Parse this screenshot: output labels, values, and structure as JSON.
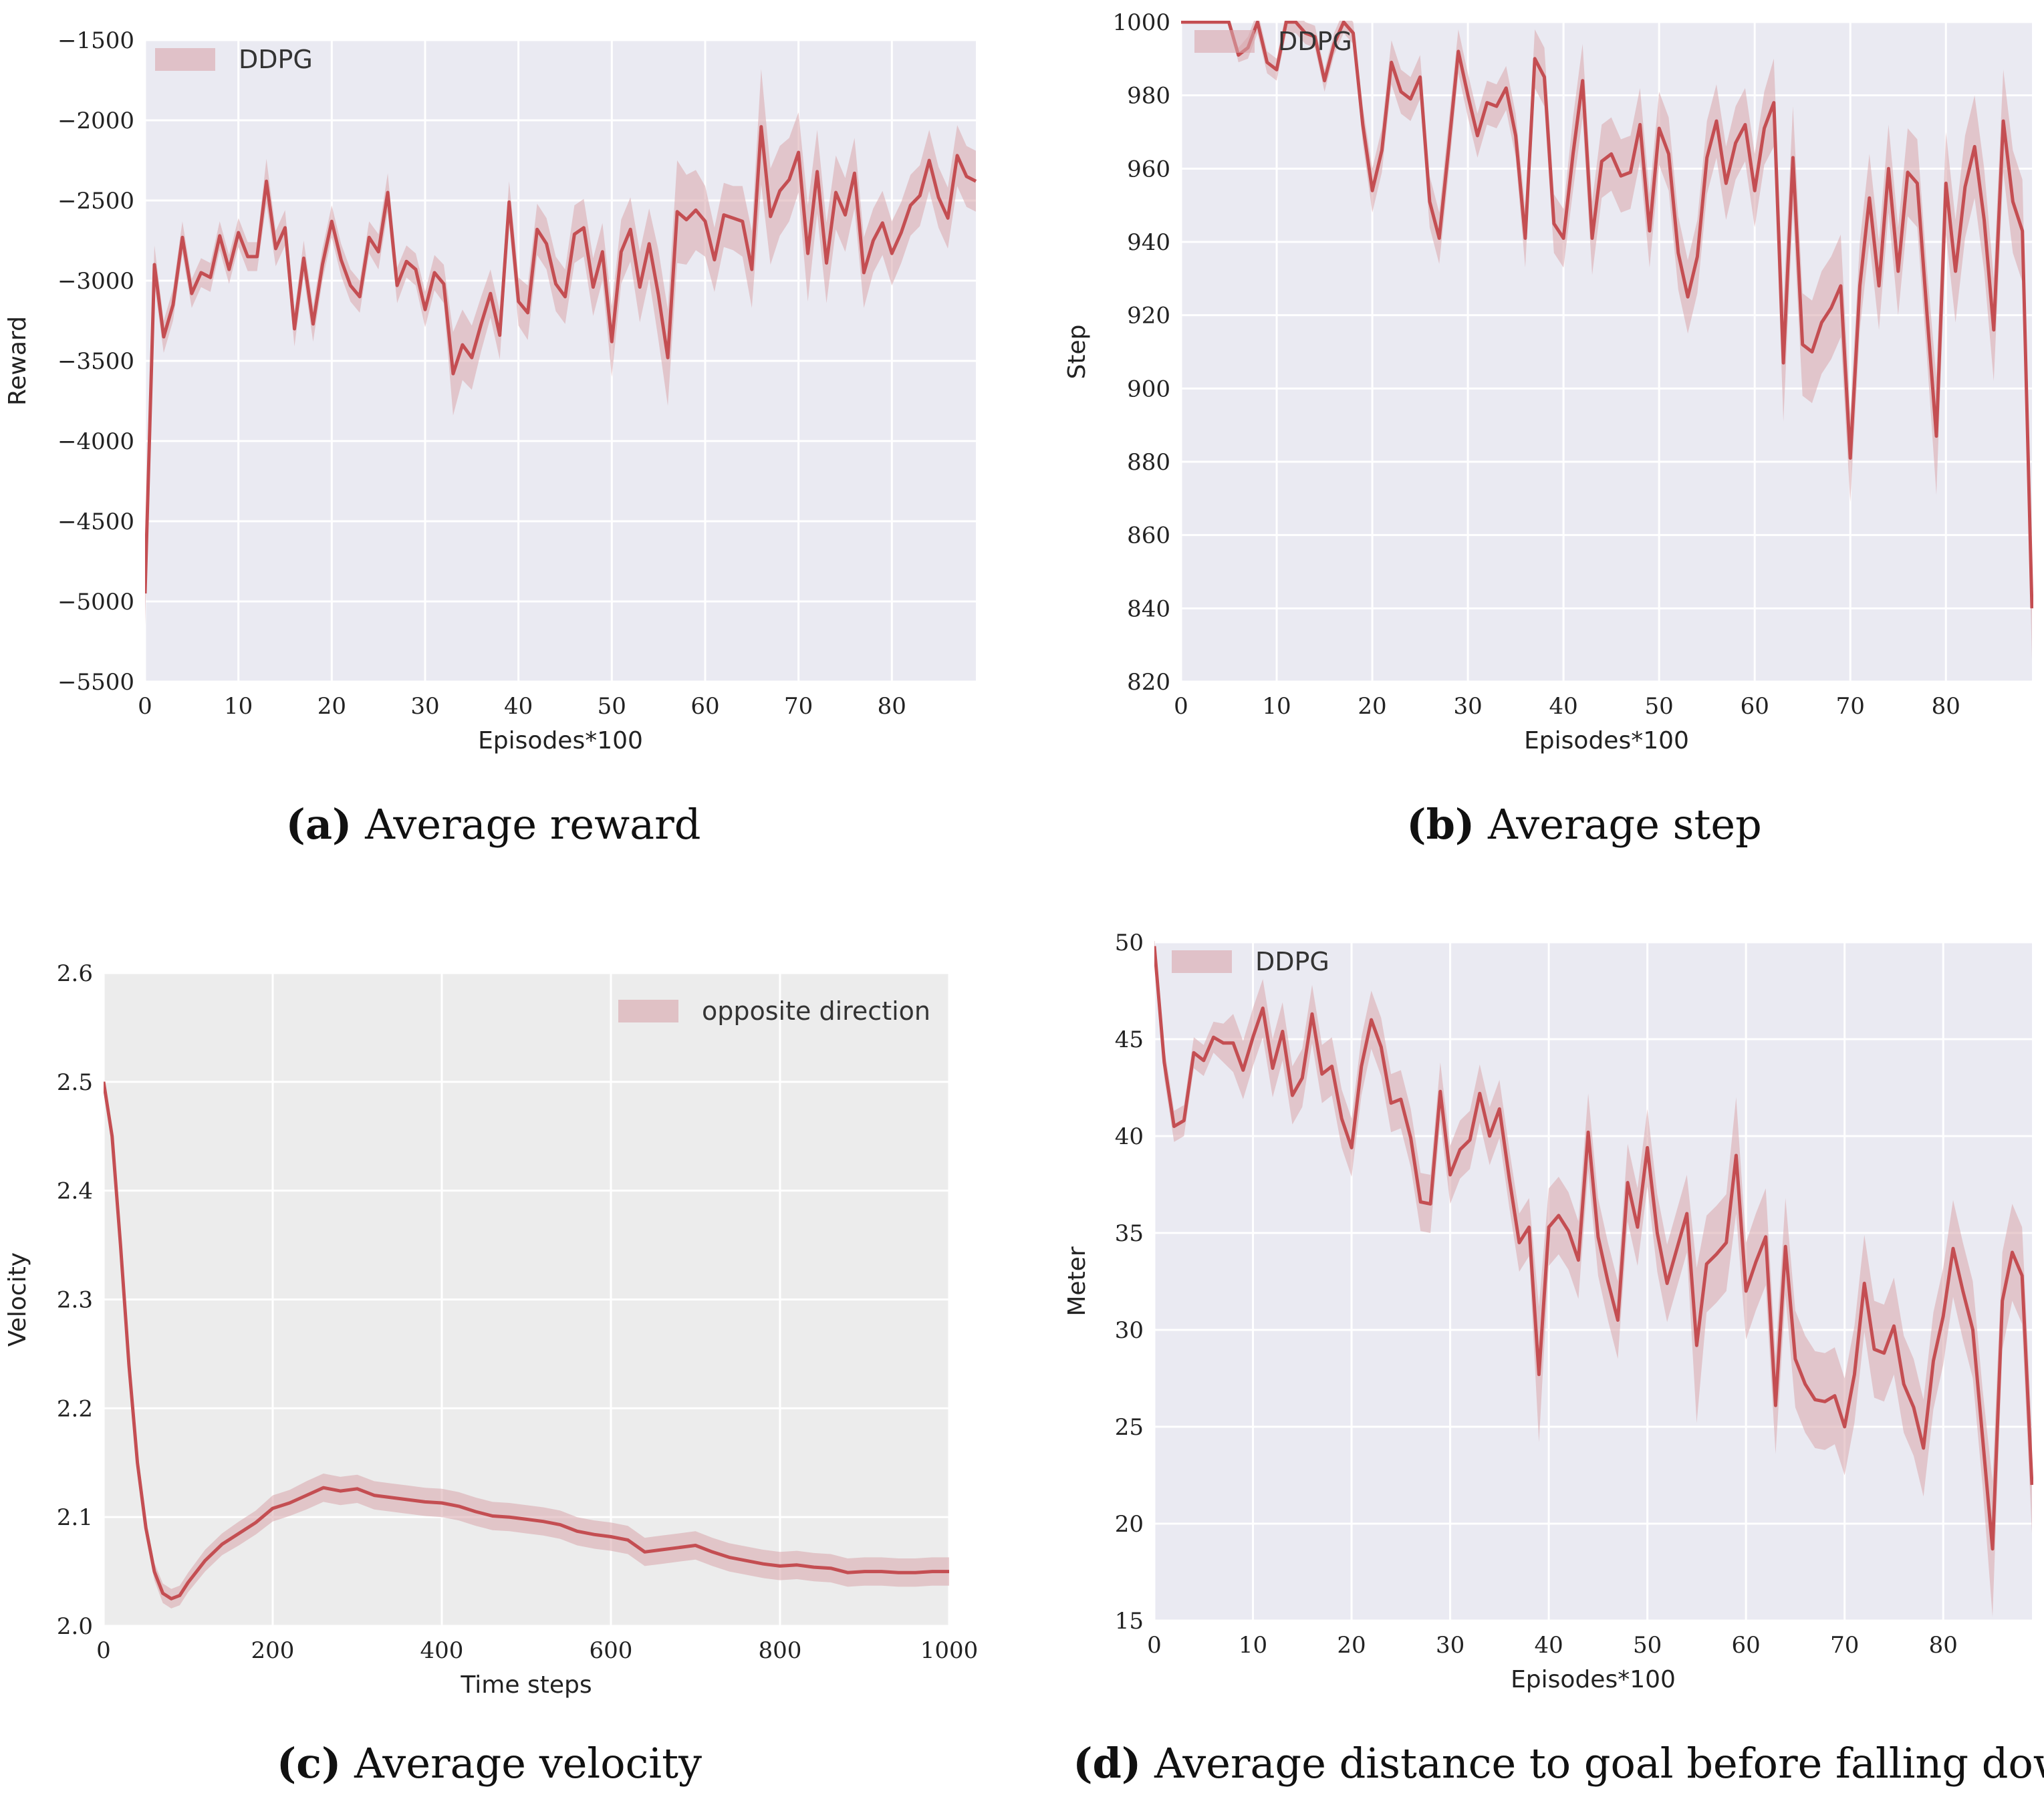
{
  "colors": {
    "line": "#c44e52",
    "band": "#d9a5ac",
    "bg_dark": "#eaeaf2",
    "bg_light": "#ececec",
    "grid": "#ffffff"
  },
  "chart_data": [
    {
      "type": "line",
      "id": "a",
      "caption_letter": "(a)",
      "caption_text": "Average reward",
      "xlabel": "Episodes*100",
      "ylabel": "Reward",
      "legend": "DDPG",
      "legend_position": "top-left",
      "xlim": [
        0,
        89
      ],
      "ylim": [
        -5500,
        -1500
      ],
      "xticks": [
        0,
        10,
        20,
        30,
        40,
        50,
        60,
        70,
        80
      ],
      "xtick_labels": [
        "0",
        "10",
        "20",
        "30",
        "40",
        "50",
        "60",
        "70",
        "80"
      ],
      "yticks": [
        -5500,
        -5000,
        -4500,
        -4000,
        -3500,
        -3000,
        -2500,
        -2000,
        -1500
      ],
      "ytick_labels": [
        "−5500",
        "−5000",
        "−4500",
        "−4000",
        "−3500",
        "−3000",
        "−2500",
        "−2000",
        "−1500"
      ],
      "x": [
        0,
        1,
        2,
        3,
        4,
        5,
        6,
        7,
        8,
        9,
        10,
        11,
        12,
        13,
        14,
        15,
        16,
        17,
        18,
        19,
        20,
        21,
        22,
        23,
        24,
        25,
        26,
        27,
        28,
        29,
        30,
        31,
        32,
        33,
        34,
        35,
        36,
        37,
        38,
        39,
        40,
        41,
        42,
        43,
        44,
        45,
        46,
        47,
        48,
        49,
        50,
        51,
        52,
        53,
        54,
        55,
        56,
        57,
        58,
        59,
        60,
        61,
        62,
        63,
        64,
        65,
        66,
        67,
        68,
        69,
        70,
        71,
        72,
        73,
        74,
        75,
        76,
        77,
        78,
        79,
        80,
        81,
        82,
        83,
        84,
        85,
        86,
        87,
        88,
        89
      ],
      "values": [
        -4950,
        -2900,
        -3350,
        -3150,
        -2730,
        -3080,
        -2950,
        -2980,
        -2720,
        -2930,
        -2700,
        -2850,
        -2850,
        -2380,
        -2800,
        -2670,
        -3300,
        -2860,
        -3270,
        -2900,
        -2630,
        -2870,
        -3030,
        -3100,
        -2730,
        -2820,
        -2450,
        -3030,
        -2880,
        -2930,
        -3180,
        -2950,
        -3020,
        -3580,
        -3400,
        -3480,
        -3270,
        -3080,
        -3340,
        -2510,
        -3130,
        -3200,
        -2680,
        -2770,
        -3020,
        -3100,
        -2710,
        -2670,
        -3040,
        -2820,
        -3380,
        -2820,
        -2680,
        -3040,
        -2770,
        -3090,
        -3480,
        -2570,
        -2620,
        -2560,
        -2630,
        -2870,
        -2590,
        -2610,
        -2630,
        -2930,
        -2040,
        -2600,
        -2440,
        -2370,
        -2200,
        -2830,
        -2320,
        -2890,
        -2450,
        -2590,
        -2330,
        -2950,
        -2750,
        -2640,
        -2830,
        -2700,
        -2530,
        -2470,
        -2250,
        -2480,
        -2610,
        -2220,
        -2350,
        -2380
      ],
      "spread": [
        200,
        120,
        100,
        100,
        100,
        90,
        90,
        90,
        90,
        90,
        90,
        90,
        90,
        140,
        110,
        110,
        110,
        110,
        110,
        100,
        100,
        100,
        100,
        100,
        100,
        110,
        120,
        110,
        100,
        100,
        110,
        110,
        120,
        260,
        220,
        200,
        170,
        150,
        150,
        130,
        150,
        170,
        160,
        160,
        170,
        170,
        180,
        180,
        180,
        180,
        220,
        200,
        200,
        220,
        220,
        280,
        300,
        320,
        280,
        250,
        220,
        200,
        200,
        200,
        220,
        240,
        360,
        300,
        280,
        260,
        250,
        300,
        260,
        250,
        230,
        230,
        220,
        220,
        200,
        200,
        200,
        190,
        190,
        190,
        190,
        190,
        190,
        190,
        190,
        190
      ]
    },
    {
      "type": "line",
      "id": "b",
      "caption_letter": "(b)",
      "caption_text": "Average step",
      "xlabel": "Episodes*100",
      "ylabel": "Step",
      "legend": "DDPG",
      "legend_position": "top-left",
      "xlim": [
        0,
        89
      ],
      "ylim": [
        820,
        1000
      ],
      "xticks": [
        0,
        10,
        20,
        30,
        40,
        50,
        60,
        70,
        80
      ],
      "xtick_labels": [
        "0",
        "10",
        "20",
        "30",
        "40",
        "50",
        "60",
        "70",
        "80"
      ],
      "yticks": [
        820,
        840,
        860,
        880,
        900,
        920,
        940,
        960,
        980,
        1000
      ],
      "ytick_labels": [
        "820",
        "840",
        "860",
        "880",
        "900",
        "920",
        "940",
        "960",
        "980",
        "1000"
      ],
      "x": [
        0,
        1,
        2,
        3,
        4,
        5,
        6,
        7,
        8,
        9,
        10,
        11,
        12,
        13,
        14,
        15,
        16,
        17,
        18,
        19,
        20,
        21,
        22,
        23,
        24,
        25,
        26,
        27,
        28,
        29,
        30,
        31,
        32,
        33,
        34,
        35,
        36,
        37,
        38,
        39,
        40,
        41,
        42,
        43,
        44,
        45,
        46,
        47,
        48,
        49,
        50,
        51,
        52,
        53,
        54,
        55,
        56,
        57,
        58,
        59,
        60,
        61,
        62,
        63,
        64,
        65,
        66,
        67,
        68,
        69,
        70,
        71,
        72,
        73,
        74,
        75,
        76,
        77,
        78,
        79,
        80,
        81,
        82,
        83,
        84,
        85,
        86,
        87,
        88,
        89
      ],
      "values": [
        1000,
        1000,
        1000,
        1000,
        1000,
        1000,
        991,
        993,
        1000,
        989,
        987,
        1000,
        1000,
        997,
        996,
        984,
        994,
        1000,
        997,
        972,
        954,
        965,
        989,
        981,
        979,
        985,
        951,
        941,
        966,
        992,
        980,
        969,
        978,
        977,
        982,
        969,
        941,
        990,
        985,
        945,
        941,
        964,
        984,
        941,
        962,
        964,
        958,
        959,
        972,
        943,
        971,
        964,
        937,
        925,
        936,
        963,
        973,
        956,
        967,
        972,
        954,
        971,
        978,
        907,
        963,
        912,
        910,
        918,
        922,
        928,
        881,
        928,
        952,
        928,
        960,
        932,
        959,
        956,
        921,
        887,
        956,
        932,
        955,
        966,
        946,
        916,
        973,
        951,
        943,
        840
      ],
      "spread": [
        0,
        0,
        0,
        0,
        0,
        0,
        2,
        3,
        3,
        3,
        3,
        3,
        3,
        3,
        3,
        3,
        3,
        3,
        3,
        5,
        6,
        6,
        6,
        6,
        6,
        6,
        7,
        7,
        7,
        6,
        6,
        6,
        6,
        6,
        6,
        6,
        8,
        8,
        8,
        8,
        8,
        10,
        10,
        10,
        10,
        10,
        10,
        10,
        10,
        10,
        10,
        10,
        10,
        10,
        10,
        10,
        10,
        10,
        10,
        10,
        10,
        10,
        12,
        16,
        14,
        14,
        14,
        14,
        14,
        14,
        12,
        12,
        12,
        12,
        12,
        12,
        12,
        12,
        12,
        16,
        14,
        14,
        14,
        14,
        14,
        14,
        14,
        14,
        14,
        14
      ]
    },
    {
      "type": "line",
      "id": "c",
      "caption_letter": "(c)",
      "caption_text": "Average velocity",
      "xlabel": "Time steps",
      "ylabel": "Velocity",
      "legend": "opposite direction",
      "legend_position": "top-right",
      "xlim": [
        0,
        1000
      ],
      "ylim": [
        2.0,
        2.6
      ],
      "xticks": [
        0,
        200,
        400,
        600,
        800,
        1000
      ],
      "xtick_labels": [
        "0",
        "200",
        "400",
        "600",
        "800",
        "1000"
      ],
      "yticks": [
        2.0,
        2.1,
        2.2,
        2.3,
        2.4,
        2.5,
        2.6
      ],
      "ytick_labels": [
        "2.0",
        "2.1",
        "2.2",
        "2.3",
        "2.4",
        "2.5",
        "2.6"
      ],
      "x": [
        0,
        10,
        20,
        30,
        40,
        50,
        60,
        70,
        80,
        90,
        100,
        120,
        140,
        160,
        180,
        200,
        220,
        240,
        260,
        280,
        300,
        320,
        340,
        360,
        380,
        400,
        420,
        440,
        460,
        480,
        500,
        520,
        540,
        560,
        580,
        600,
        620,
        640,
        660,
        680,
        700,
        720,
        740,
        760,
        780,
        800,
        820,
        840,
        860,
        880,
        900,
        920,
        940,
        960,
        980,
        1000
      ],
      "values": [
        2.5,
        2.45,
        2.35,
        2.24,
        2.15,
        2.09,
        2.05,
        2.03,
        2.025,
        2.028,
        2.04,
        2.06,
        2.075,
        2.085,
        2.095,
        2.108,
        2.113,
        2.12,
        2.127,
        2.124,
        2.126,
        2.12,
        2.118,
        2.116,
        2.114,
        2.113,
        2.11,
        2.105,
        2.101,
        2.1,
        2.098,
        2.096,
        2.093,
        2.087,
        2.084,
        2.082,
        2.079,
        2.068,
        2.07,
        2.072,
        2.074,
        2.068,
        2.063,
        2.06,
        2.057,
        2.055,
        2.056,
        2.054,
        2.053,
        2.049,
        2.05,
        2.05,
        2.049,
        2.049,
        2.05,
        2.05
      ],
      "spread": [
        0.002,
        0.004,
        0.005,
        0.006,
        0.007,
        0.008,
        0.008,
        0.009,
        0.009,
        0.009,
        0.009,
        0.01,
        0.01,
        0.011,
        0.011,
        0.012,
        0.012,
        0.013,
        0.013,
        0.013,
        0.013,
        0.013,
        0.013,
        0.013,
        0.013,
        0.013,
        0.013,
        0.013,
        0.013,
        0.013,
        0.013,
        0.013,
        0.013,
        0.013,
        0.013,
        0.013,
        0.013,
        0.013,
        0.013,
        0.013,
        0.013,
        0.013,
        0.013,
        0.013,
        0.013,
        0.013,
        0.013,
        0.013,
        0.013,
        0.013,
        0.013,
        0.013,
        0.013,
        0.013,
        0.013,
        0.013
      ]
    },
    {
      "type": "line",
      "id": "d",
      "caption_letter": "(d)",
      "caption_text": "Average distance to goal before falling down",
      "xlabel": "Episodes*100",
      "ylabel": "Meter",
      "legend": "DDPG",
      "legend_position": "top-left",
      "xlim": [
        0,
        89
      ],
      "ylim": [
        15,
        50
      ],
      "xticks": [
        0,
        10,
        20,
        30,
        40,
        50,
        60,
        70,
        80
      ],
      "xtick_labels": [
        "0",
        "10",
        "20",
        "30",
        "40",
        "50",
        "60",
        "70",
        "80"
      ],
      "yticks": [
        15,
        20,
        25,
        30,
        35,
        40,
        45,
        50
      ],
      "ytick_labels": [
        "15",
        "20",
        "25",
        "30",
        "35",
        "40",
        "45",
        "50"
      ],
      "x": [
        0,
        1,
        2,
        3,
        4,
        5,
        6,
        7,
        8,
        9,
        10,
        11,
        12,
        13,
        14,
        15,
        16,
        17,
        18,
        19,
        20,
        21,
        22,
        23,
        24,
        25,
        26,
        27,
        28,
        29,
        30,
        31,
        32,
        33,
        34,
        35,
        36,
        37,
        38,
        39,
        40,
        41,
        42,
        43,
        44,
        45,
        46,
        47,
        48,
        49,
        50,
        51,
        52,
        53,
        54,
        55,
        56,
        57,
        58,
        59,
        60,
        61,
        62,
        63,
        64,
        65,
        66,
        67,
        68,
        69,
        70,
        71,
        72,
        73,
        74,
        75,
        76,
        77,
        78,
        79,
        80,
        81,
        82,
        83,
        84,
        85,
        86,
        87,
        88,
        89
      ],
      "values": [
        49.8,
        43.8,
        40.5,
        40.8,
        44.3,
        43.9,
        45.1,
        44.8,
        44.8,
        43.4,
        45.1,
        46.6,
        43.5,
        45.4,
        42.1,
        43.0,
        46.3,
        43.2,
        43.6,
        40.9,
        39.4,
        43.6,
        46.0,
        44.6,
        41.7,
        41.9,
        39.9,
        36.6,
        36.5,
        42.3,
        38.0,
        39.3,
        39.8,
        42.2,
        40.0,
        41.4,
        37.8,
        34.5,
        35.3,
        27.7,
        35.3,
        35.9,
        35.1,
        33.6,
        40.2,
        34.8,
        32.5,
        30.5,
        37.6,
        35.3,
        39.4,
        35.0,
        32.4,
        34.2,
        36.0,
        29.2,
        33.4,
        33.9,
        34.5,
        39.0,
        32.0,
        33.5,
        34.8,
        26.1,
        34.3,
        28.5,
        27.2,
        26.4,
        26.3,
        26.6,
        25.0,
        27.7,
        32.4,
        29.0,
        28.8,
        30.2,
        27.2,
        26.0,
        23.9,
        28.4,
        30.7,
        34.2,
        32.0,
        30.0,
        24.4,
        18.7,
        31.5,
        34.0,
        32.8,
        22.0
      ],
      "spread": [
        0.5,
        0.8,
        0.8,
        0.8,
        0.8,
        0.8,
        0.8,
        1.0,
        1.5,
        1.5,
        1.5,
        1.5,
        1.5,
        1.5,
        1.5,
        1.5,
        1.5,
        1.5,
        1.5,
        1.5,
        1.5,
        1.5,
        1.5,
        1.5,
        1.5,
        1.5,
        1.5,
        1.5,
        1.5,
        1.5,
        1.5,
        1.5,
        1.5,
        1.5,
        1.5,
        1.5,
        1.5,
        1.5,
        1.5,
        3.5,
        2.0,
        2.0,
        2.0,
        2.0,
        2.0,
        2.0,
        2.0,
        2.0,
        2.0,
        2.0,
        2.0,
        2.0,
        2.0,
        2.0,
        2.0,
        4.0,
        2.5,
        2.5,
        2.5,
        3.0,
        2.5,
        2.5,
        2.5,
        2.5,
        2.5,
        2.5,
        2.5,
        2.5,
        2.5,
        2.5,
        2.5,
        2.5,
        2.5,
        2.5,
        2.5,
        2.5,
        2.5,
        2.5,
        2.5,
        2.5,
        2.5,
        2.5,
        2.5,
        2.5,
        2.5,
        3.5,
        2.5,
        2.5,
        2.5,
        2.5
      ]
    }
  ]
}
